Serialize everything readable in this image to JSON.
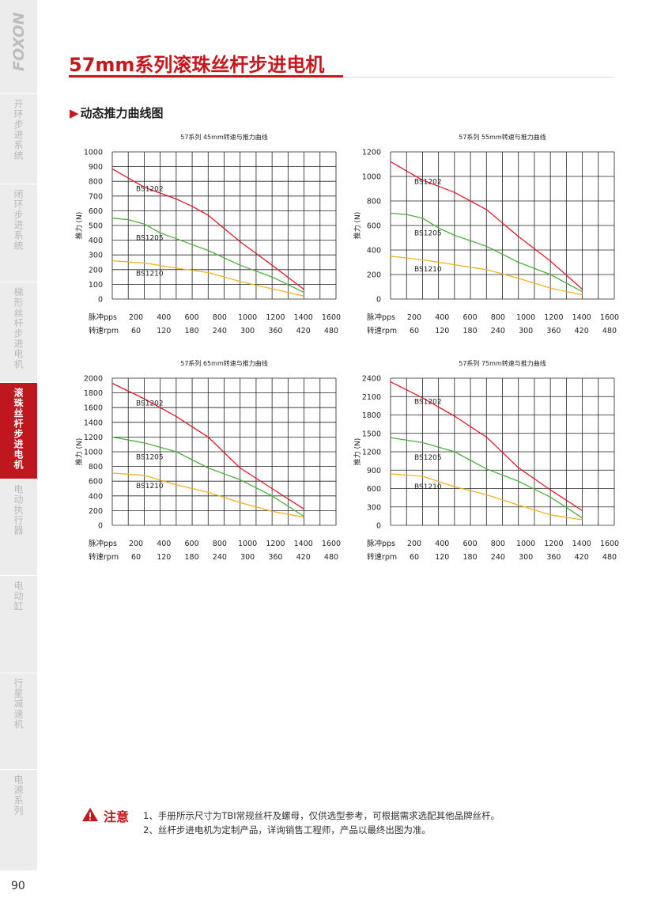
{
  "brand": "FOXON",
  "page_number": "90",
  "title": "57mm系列滚珠丝杆步进电机",
  "section_title": "动态推力曲线图",
  "sidebar": {
    "items": [
      {
        "label": "开环步进系统",
        "active": false
      },
      {
        "label": "闭环步进系统",
        "active": false
      },
      {
        "label": "梯形丝杆步进电机",
        "active": false
      },
      {
        "label": "滚珠丝杆步进电机",
        "active": true
      },
      {
        "label": "电动执行器",
        "active": false
      },
      {
        "label": "电动缸",
        "active": false
      },
      {
        "label": "行星减速机",
        "active": false
      },
      {
        "label": "电源系列",
        "active": false
      }
    ]
  },
  "colors": {
    "brand": "#c8161d",
    "BS1202": "#e0192b",
    "BS1205": "#4caf3c",
    "BS1210": "#f2b21c"
  },
  "chart_data": [
    {
      "type": "line",
      "title": "57系列 45mm转速与推力曲线",
      "ylabel": "推力 (N)",
      "ylim": [
        0,
        1000
      ],
      "yticks": [
        0,
        100,
        200,
        300,
        400,
        500,
        600,
        700,
        800,
        900,
        1000
      ],
      "x_row1_label": "脉冲pps",
      "x_row1": [
        200,
        400,
        600,
        800,
        1000,
        1200,
        1400,
        1600
      ],
      "x_row2_label": "转速rpm",
      "x_row2": [
        60,
        120,
        180,
        240,
        300,
        360,
        420,
        480
      ],
      "xlim": [
        200,
        1600
      ],
      "series": [
        {
          "name": "BS1202",
          "x": [
            200,
            400,
            600,
            700,
            800,
            1000,
            1200,
            1400
          ],
          "y": [
            885,
            760,
            680,
            630,
            570,
            390,
            230,
            65
          ]
        },
        {
          "name": "BS1205",
          "x": [
            200,
            300,
            400,
            500,
            600,
            800,
            1000,
            1200,
            1400
          ],
          "y": [
            550,
            540,
            510,
            450,
            410,
            330,
            230,
            150,
            45
          ]
        },
        {
          "name": "BS1210",
          "x": [
            200,
            400,
            600,
            800,
            1000,
            1200,
            1400
          ],
          "y": [
            260,
            245,
            210,
            180,
            120,
            70,
            20
          ]
        }
      ]
    },
    {
      "type": "line",
      "title": "57系列 55mm转速与推力曲线",
      "ylabel": "推力 (N)",
      "ylim": [
        0,
        1200
      ],
      "yticks": [
        0,
        200,
        400,
        600,
        800,
        1000,
        1200
      ],
      "x_row1_label": "脉冲pps",
      "x_row1": [
        200,
        400,
        600,
        800,
        1000,
        1200,
        1400,
        1600
      ],
      "x_row2_label": "转速rpm",
      "x_row2": [
        60,
        120,
        180,
        240,
        300,
        360,
        420,
        480
      ],
      "xlim": [
        200,
        1600
      ],
      "series": [
        {
          "name": "BS1202",
          "x": [
            200,
            400,
            600,
            800,
            1000,
            1200,
            1400
          ],
          "y": [
            1120,
            970,
            870,
            730,
            510,
            310,
            80
          ]
        },
        {
          "name": "BS1205",
          "x": [
            200,
            300,
            400,
            500,
            600,
            800,
            1000,
            1200,
            1400
          ],
          "y": [
            700,
            690,
            660,
            580,
            520,
            430,
            300,
            200,
            60
          ]
        },
        {
          "name": "BS1210",
          "x": [
            200,
            400,
            600,
            800,
            1000,
            1200,
            1400
          ],
          "y": [
            350,
            320,
            280,
            240,
            170,
            90,
            35
          ]
        }
      ]
    },
    {
      "type": "line",
      "title": "57系列 65mm转速与推力曲线",
      "ylabel": "推力 (N)",
      "ylim": [
        0,
        2000
      ],
      "yticks": [
        0,
        200,
        400,
        600,
        800,
        1000,
        1200,
        1400,
        1600,
        1800,
        2000
      ],
      "x_row1_label": "脉冲pps",
      "x_row1": [
        200,
        400,
        600,
        800,
        1000,
        1200,
        1400,
        1600
      ],
      "x_row2_label": "转速rpm",
      "x_row2": [
        60,
        120,
        180,
        240,
        300,
        360,
        420,
        480
      ],
      "xlim": [
        200,
        1600
      ],
      "series": [
        {
          "name": "BS1202",
          "x": [
            200,
            400,
            600,
            800,
            1000,
            1200,
            1400
          ],
          "y": [
            1930,
            1720,
            1480,
            1200,
            780,
            500,
            220
          ]
        },
        {
          "name": "BS1205",
          "x": [
            200,
            400,
            600,
            800,
            1000,
            1200,
            1400
          ],
          "y": [
            1200,
            1120,
            1000,
            780,
            620,
            400,
            120
          ]
        },
        {
          "name": "BS1210",
          "x": [
            200,
            400,
            600,
            800,
            1000,
            1200,
            1400
          ],
          "y": [
            710,
            680,
            550,
            450,
            310,
            190,
            110
          ]
        }
      ]
    },
    {
      "type": "line",
      "title": "57系列 75mm转速与推力曲线",
      "ylabel": "推力 (N)",
      "ylim": [
        0,
        2400
      ],
      "yticks": [
        0,
        300,
        600,
        900,
        1200,
        1500,
        1800,
        2100,
        2400
      ],
      "x_row1_label": "脉冲pps",
      "x_row1": [
        200,
        400,
        600,
        800,
        1000,
        1200,
        1400,
        1600
      ],
      "x_row2_label": "转速rpm",
      "x_row2": [
        60,
        120,
        180,
        240,
        300,
        360,
        420,
        480
      ],
      "xlim": [
        200,
        1600
      ],
      "series": [
        {
          "name": "BS1202",
          "x": [
            200,
            400,
            600,
            800,
            1000,
            1200,
            1400
          ],
          "y": [
            2340,
            2080,
            1780,
            1440,
            940,
            580,
            240
          ]
        },
        {
          "name": "BS1205",
          "x": [
            200,
            400,
            600,
            800,
            1000,
            1200,
            1400
          ],
          "y": [
            1430,
            1350,
            1200,
            920,
            720,
            460,
            120
          ]
        },
        {
          "name": "BS1210",
          "x": [
            200,
            400,
            600,
            800,
            1000,
            1200,
            1400
          ],
          "y": [
            840,
            800,
            630,
            500,
            330,
            170,
            90
          ]
        }
      ]
    }
  ],
  "note": {
    "label": "注意",
    "lines": [
      "1、手册所示尺寸为TBI常规丝杆及螺母，仅供选型参考，可根据需求选配其他品牌丝杆。",
      "2、丝杆步进电机为定制产品，详询销售工程师，产品以最终出图为准。"
    ]
  }
}
